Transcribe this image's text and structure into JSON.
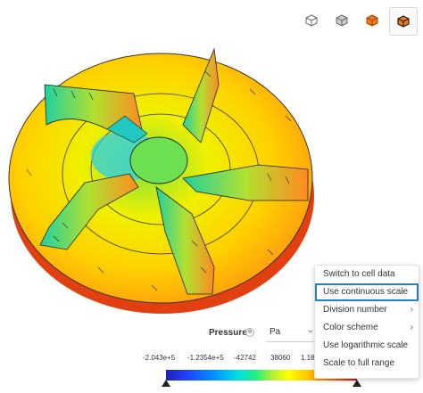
{
  "toolbar": {
    "view_icons": [
      "cube-outline-icon",
      "cube-solid-icon",
      "cube-orange-icon",
      "cube-orange-edges-icon"
    ]
  },
  "legend": {
    "label": "Pressure",
    "info_symbol": "⊕",
    "unit": "Pa",
    "unit_chevron": "⌄",
    "ticks": [
      "-2.043e+5",
      "-1.2354e+5",
      "-42742",
      "38060",
      "1.18"
    ]
  },
  "context_menu": {
    "items": [
      {
        "label": "Switch to cell data",
        "submenu": false,
        "selected": false
      },
      {
        "label": "Use continuous scale",
        "submenu": false,
        "selected": true
      },
      {
        "label": "Division number",
        "submenu": true,
        "selected": false
      },
      {
        "label": "Color scheme",
        "submenu": true,
        "selected": false
      },
      {
        "label": "Use logarithmic scale",
        "submenu": false,
        "selected": false
      },
      {
        "label": "Scale to full range",
        "submenu": false,
        "selected": false
      }
    ]
  },
  "colors": {
    "menu_selected_outline": "#2c7dbb",
    "accent_orange": "#f07a1a"
  }
}
